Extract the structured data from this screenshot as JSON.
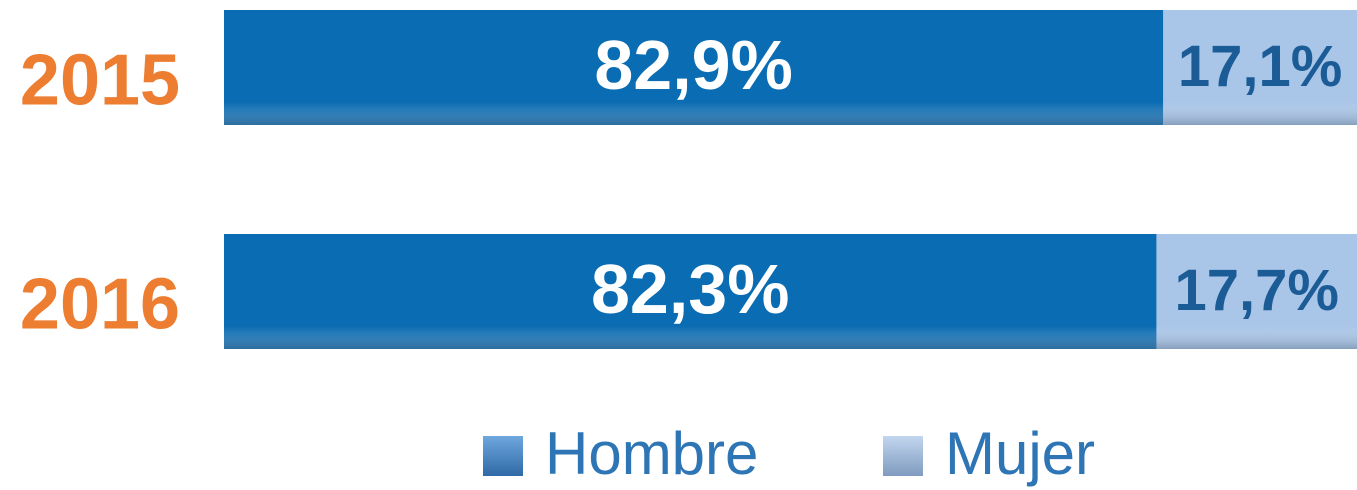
{
  "chart_data": {
    "type": "stacked-bar-horizontal",
    "categories": [
      "2015",
      "2016"
    ],
    "series": [
      {
        "name": "Hombre",
        "color": "#0a6cb2",
        "values": [
          82.9,
          82.3
        ],
        "value_labels": [
          "82,9%",
          "82,3%"
        ]
      },
      {
        "name": "Mujer",
        "color": "#a9c5e8",
        "values": [
          17.1,
          17.7
        ],
        "value_labels": [
          "17,1%",
          "17,7%"
        ]
      }
    ],
    "legend": "bottom"
  }
}
